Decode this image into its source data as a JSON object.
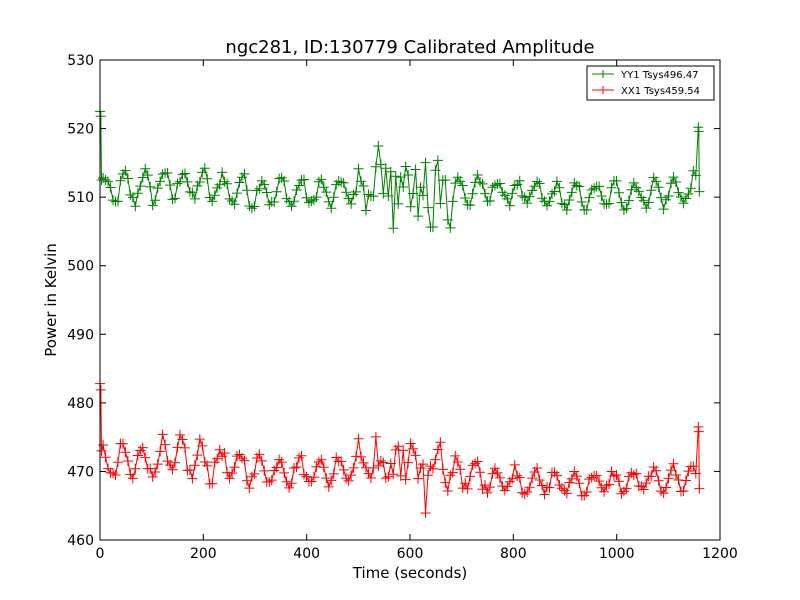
{
  "chart_data": {
    "type": "line",
    "title": "ngc281, ID:130779 Calibrated Amplitude",
    "xlabel": "Time (seconds)",
    "ylabel": "Power in Kelvin",
    "xlim": [
      0,
      1200
    ],
    "ylim": [
      460,
      530
    ],
    "xticks": [
      0,
      200,
      400,
      600,
      800,
      1000,
      1200
    ],
    "yticks": [
      460,
      470,
      480,
      490,
      500,
      510,
      520,
      530
    ],
    "grid": false,
    "legend_position": "top-right",
    "marker": "+",
    "sample_interval": 4.8,
    "x_end": 1160,
    "series": [
      {
        "name": "YY1 Tsys496.47",
        "color": "#008000",
        "baseline": 510.7,
        "oscillation_amplitude": 2.2,
        "oscillation_period": 38,
        "start_points": [
          [
            0,
            522.5
          ],
          [
            1.5,
            521.8
          ],
          [
            3,
            512.5
          ]
        ],
        "end_points": [
          [
            1158,
            520.2
          ],
          [
            1159,
            519.6
          ],
          [
            1160,
            510.8
          ]
        ],
        "segments": [
          {
            "x": [
              0,
              150,
              300,
              450,
              500,
              560,
              620,
              680,
              750,
              900,
              1050,
              1140
            ],
            "mean": [
              510.8,
              512.0,
              510.8,
              510.5,
              511.2,
              511.5,
              511.3,
              510.8,
              511.0,
              510.0,
              510.5,
              511.0
            ],
            "spread": [
              2.0,
              2.4,
              2.0,
              1.8,
              2.6,
              4.5,
              5.0,
              3.0,
              1.8,
              1.6,
              1.8,
              2.0
            ]
          }
        ]
      },
      {
        "name": "XX1 Tsys459.54",
        "color": "#ff0000",
        "baseline": 470.5,
        "oscillation_amplitude": 2.5,
        "oscillation_period": 38,
        "start_points": [
          [
            0,
            482.8
          ],
          [
            1.5,
            481.9
          ],
          [
            3,
            473.0
          ]
        ],
        "end_points": [
          [
            1158,
            476.5
          ],
          [
            1159,
            475.8
          ],
          [
            1160,
            467.5
          ]
        ],
        "segments": [
          {
            "x": [
              0,
              150,
              300,
              450,
              500,
              560,
              620,
              680,
              750,
              900,
              1050,
              1140
            ],
            "mean": [
              471.0,
              472.0,
              470.3,
              470.0,
              471.5,
              471.2,
              470.8,
              469.8,
              469.0,
              468.2,
              468.5,
              469.2
            ],
            "spread": [
              2.2,
              2.8,
              2.0,
              1.8,
              2.4,
              3.6,
              3.8,
              2.6,
              1.8,
              1.6,
              1.4,
              1.8
            ]
          }
        ]
      }
    ]
  }
}
